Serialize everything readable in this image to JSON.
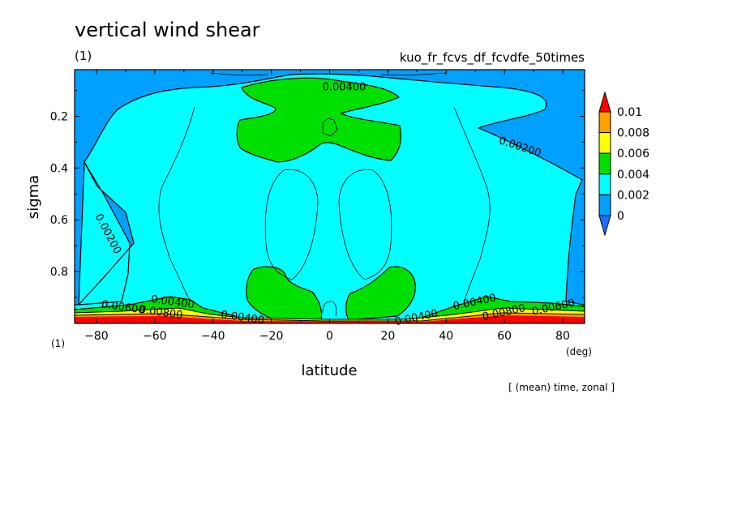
{
  "figure": {
    "title": "vertical wind shear",
    "subtitle_left": "(1)",
    "run_name": "kuo_fr_fcvs_df_fcvdfe_50times",
    "y_unit_label": "(1)",
    "x_unit_label": "(deg)",
    "note": "[ (mean) time, zonal ]"
  },
  "chart_data": {
    "type": "heatmap",
    "title": "vertical wind shear",
    "xlabel": "latitude",
    "ylabel": "sigma",
    "xlim": [
      -87.5,
      87.5
    ],
    "ylim": [
      1.0,
      0.02
    ],
    "y_reversed": true,
    "x_ticks": [
      -80,
      -60,
      -40,
      -20,
      0,
      20,
      40,
      60,
      80
    ],
    "y_ticks": [
      0.2,
      0.4,
      0.6,
      0.8
    ],
    "x_tick_labels": [
      "−80",
      "−60",
      "−40",
      "−20",
      "0",
      "20",
      "40",
      "60",
      "80"
    ],
    "y_tick_labels": [
      "0.2",
      "0.4",
      "0.6",
      "0.8"
    ],
    "color_levels": [
      0,
      0.002,
      0.004,
      0.006,
      0.008,
      0.01
    ],
    "colorbar_labels": [
      "0",
      "0.002",
      "0.004",
      "0.006",
      "0.008",
      "0.01"
    ],
    "colors": {
      "below_0": "#1f6fff",
      "0_to_0.002": "#00a0ff",
      "0.002_to_0.004": "#00ffff",
      "0.004_to_0.006": "#00e000",
      "0.006_to_0.008": "#ffff00",
      "0.008_to_0.01": "#ffa000",
      "above_0.01": "#ff0000"
    },
    "contour_labels": [
      {
        "text": "0.00400",
        "lat": 5,
        "sigma": 0.1
      },
      {
        "text": "0.00200",
        "lat": 65,
        "sigma": 0.33
      },
      {
        "text": "0.00200",
        "lat": -77,
        "sigma": 0.66
      },
      {
        "text": "0.00400",
        "lat": -54,
        "sigma": 0.93
      },
      {
        "text": "0.00400",
        "lat": 50,
        "sigma": 0.93
      },
      {
        "text": "0.00600",
        "lat": -71,
        "sigma": 0.95
      },
      {
        "text": "0.00600",
        "lat": 77,
        "sigma": 0.95
      },
      {
        "text": "0.00800",
        "lat": -58,
        "sigma": 0.97
      },
      {
        "text": "0.00800",
        "lat": 60,
        "sigma": 0.97
      },
      {
        "text": "0.00400",
        "lat": -30,
        "sigma": 0.99
      },
      {
        "text": "0.00400",
        "lat": 30,
        "sigma": 0.99
      }
    ]
  }
}
